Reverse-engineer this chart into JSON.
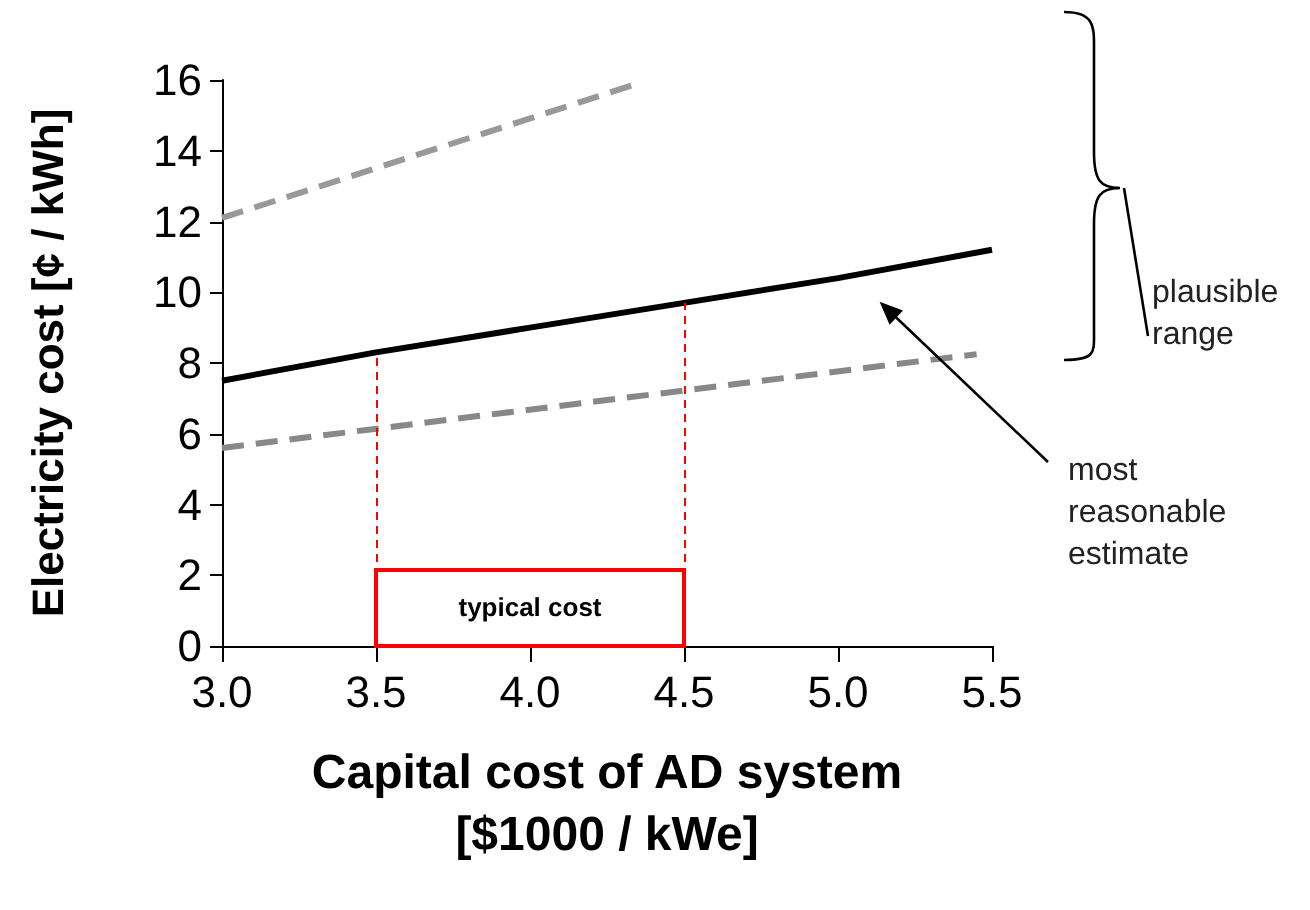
{
  "chart_data": {
    "type": "line",
    "xlabel": "Capital cost of AD system\n[$1000 / kWe]",
    "ylabel": "Electricity cost [¢ / kWh]",
    "xlim": [
      3.0,
      5.5
    ],
    "xticks": [
      {
        "value": 3.0,
        "label": "3.0"
      },
      {
        "value": 3.5,
        "label": "3.5"
      },
      {
        "value": 4.0,
        "label": "4.0"
      },
      {
        "value": 4.5,
        "label": "4.5"
      },
      {
        "value": 5.0,
        "label": "5.0"
      },
      {
        "value": 5.5,
        "label": "5.5"
      }
    ],
    "ylim": [
      0,
      16
    ],
    "yticks": [
      0,
      2,
      4,
      6,
      8,
      10,
      12,
      14,
      16
    ],
    "grid": false,
    "marker": "none",
    "series": [
      {
        "color": "#000000",
        "line_style": "solid",
        "x": [
          3.0,
          3.5,
          4.0,
          4.5,
          5.0,
          5.5
        ],
        "values": [
          7.5,
          8.3,
          9.0,
          9.7,
          10.4,
          11.2
        ]
      },
      {
        "color": "#999999",
        "line_style": "dashed",
        "x": [
          3.0,
          4.35
        ],
        "values": [
          12.1,
          15.9
        ]
      },
      {
        "color": "#888888",
        "line_style": "dashed",
        "x": [
          3.0,
          5.45
        ],
        "values": [
          5.6,
          8.25
        ]
      }
    ],
    "ref_lines": [
      {
        "axis": "x",
        "value": 3.5,
        "color": "#ff0000",
        "line_style": "dashed"
      },
      {
        "axis": "x",
        "value": 4.5,
        "color": "#ff0000",
        "line_style": "dashed"
      }
    ],
    "annotations": [
      "plausible range",
      "most reasonable estimate",
      "typical cost"
    ]
  }
}
